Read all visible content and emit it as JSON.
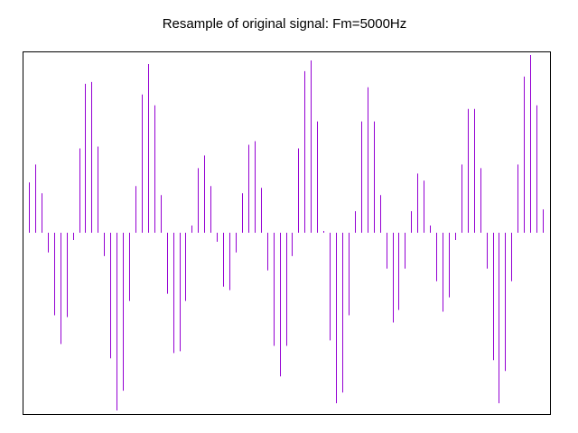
{
  "chart_data": {
    "type": "stem",
    "title": "Resample of original signal: Fm=5000Hz",
    "xlabel": "",
    "ylabel": "",
    "grid": false,
    "line_color": "#9400d3",
    "ylim": [
      -1.0,
      1.0
    ],
    "xlim": [
      0,
      83
    ],
    "n": 84,
    "values": [
      0.28,
      0.38,
      0.22,
      -0.11,
      -0.46,
      -0.62,
      -0.47,
      -0.04,
      0.47,
      0.83,
      0.84,
      0.48,
      -0.13,
      -0.7,
      -0.99,
      -0.88,
      -0.38,
      0.26,
      0.77,
      0.94,
      0.71,
      0.21,
      -0.34,
      -0.67,
      -0.66,
      -0.38,
      0.04,
      0.36,
      0.43,
      0.26,
      -0.05,
      -0.3,
      -0.32,
      -0.11,
      0.22,
      0.49,
      0.51,
      0.25,
      -0.21,
      -0.63,
      -0.8,
      -0.63,
      -0.13,
      0.47,
      0.9,
      0.96,
      0.62,
      0.01,
      -0.6,
      -0.95,
      -0.89,
      -0.46,
      0.12,
      0.62,
      0.81,
      0.62,
      0.21,
      -0.2,
      -0.5,
      -0.43,
      -0.2,
      0.12,
      0.33,
      0.29,
      0.04,
      -0.27,
      -0.44,
      -0.36,
      -0.04,
      0.38,
      0.69,
      0.69,
      0.36,
      -0.2,
      -0.71,
      -0.95,
      -0.77,
      -0.27,
      0.38,
      0.87,
      0.99,
      0.71,
      0.13,
      0.0
    ]
  }
}
